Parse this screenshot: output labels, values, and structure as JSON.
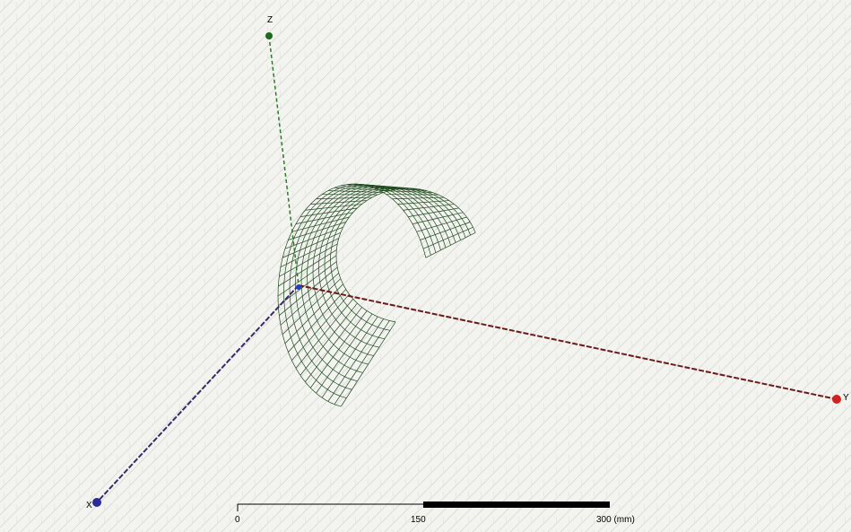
{
  "axes": {
    "z": "Z",
    "y": "Y",
    "x": "X"
  },
  "scale_bar": {
    "labels": [
      "0",
      "150",
      "300 (mm)"
    ]
  }
}
